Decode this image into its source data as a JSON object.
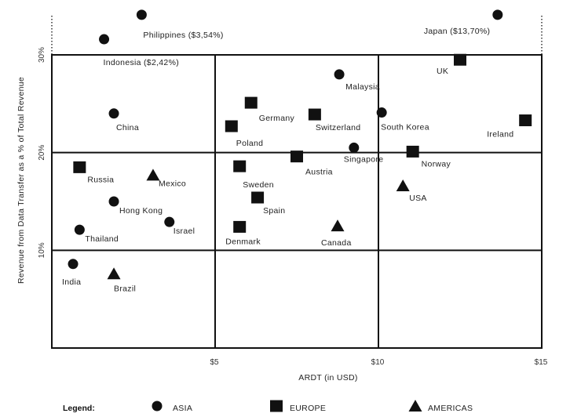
{
  "chart_data": {
    "type": "scatter",
    "title": "",
    "xlabel": "ARDT (in USD)",
    "ylabel": "Revenue from Data Transfer as a % of Total Revenue",
    "xlim": [
      0,
      15
    ],
    "ylim": [
      0,
      30
    ],
    "x_ticks": [
      {
        "value": 5,
        "label": "$5"
      },
      {
        "value": 10,
        "label": "$10"
      },
      {
        "value": 15,
        "label": "$15"
      }
    ],
    "y_ticks": [
      {
        "value": 10,
        "label": "10%"
      },
      {
        "value": 20,
        "label": "20%"
      },
      {
        "value": 30,
        "label": "30%"
      }
    ],
    "grid": true,
    "legend_title": "Legend:",
    "legend_position": "bottom",
    "series": [
      {
        "name": "ASIA",
        "marker": "circle",
        "points": [
          {
            "label": "Philippines ($3,54%)",
            "x": 2.75,
            "y": 34.1,
            "note": "off-scale"
          },
          {
            "label": "Indonesia ($2,42%)",
            "x": 1.6,
            "y": 31.6,
            "note": "off-scale"
          },
          {
            "label": "Japan ($13,70%)",
            "x": 13.65,
            "y": 34.1,
            "note": "off-scale"
          },
          {
            "label": "Malaysia",
            "x": 8.8,
            "y": 28.0
          },
          {
            "label": "China",
            "x": 1.9,
            "y": 24.0
          },
          {
            "label": "South Korea",
            "x": 10.1,
            "y": 24.1
          },
          {
            "label": "Singapore",
            "x": 9.25,
            "y": 20.5
          },
          {
            "label": "Hong Kong",
            "x": 1.9,
            "y": 15.0
          },
          {
            "label": "Israel",
            "x": 3.6,
            "y": 12.9
          },
          {
            "label": "Thailand",
            "x": 0.85,
            "y": 12.1
          },
          {
            "label": "India",
            "x": 0.65,
            "y": 8.6
          }
        ]
      },
      {
        "name": "EUROPE",
        "marker": "square",
        "points": [
          {
            "label": "UK",
            "x": 12.5,
            "y": 29.5
          },
          {
            "label": "Germany",
            "x": 6.1,
            "y": 25.1
          },
          {
            "label": "Switzerland",
            "x": 8.05,
            "y": 23.9
          },
          {
            "label": "Poland",
            "x": 5.5,
            "y": 22.7
          },
          {
            "label": "Ireland",
            "x": 14.5,
            "y": 23.3
          },
          {
            "label": "Norway",
            "x": 11.05,
            "y": 20.1
          },
          {
            "label": "Austria",
            "x": 7.5,
            "y": 19.6
          },
          {
            "label": "Russia",
            "x": 0.85,
            "y": 18.5
          },
          {
            "label": "Sweden",
            "x": 5.75,
            "y": 18.6
          },
          {
            "label": "Spain",
            "x": 6.3,
            "y": 15.4
          },
          {
            "label": "Denmark",
            "x": 5.75,
            "y": 12.4
          }
        ]
      },
      {
        "name": "AMERICAS",
        "marker": "triangle",
        "points": [
          {
            "label": "Mexico",
            "x": 3.1,
            "y": 17.7
          },
          {
            "label": "USA",
            "x": 10.75,
            "y": 16.6
          },
          {
            "label": "Canada",
            "x": 8.75,
            "y": 12.5
          },
          {
            "label": "Brazil",
            "x": 1.9,
            "y": 7.6
          }
        ]
      }
    ]
  }
}
